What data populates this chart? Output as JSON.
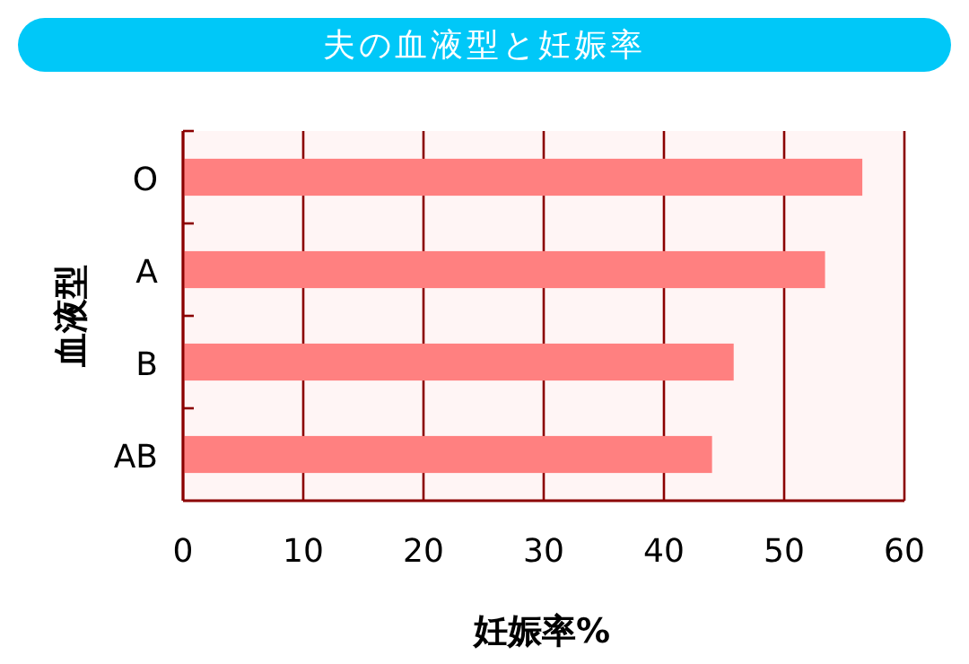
{
  "chart_data": {
    "type": "bar",
    "title": "夫の血液型と妊娠率",
    "orientation": "horizontal",
    "categories": [
      "O",
      "A",
      "B",
      "AB"
    ],
    "values": [
      56.5,
      53.4,
      45.8,
      44.0
    ],
    "color": "#ff8080",
    "xlim": [
      0,
      60
    ],
    "xticks": [
      0,
      10,
      20,
      30,
      40,
      50,
      60
    ],
    "xlabel": "妊娠率%",
    "ylabel": "血液型",
    "grid": "x"
  }
}
